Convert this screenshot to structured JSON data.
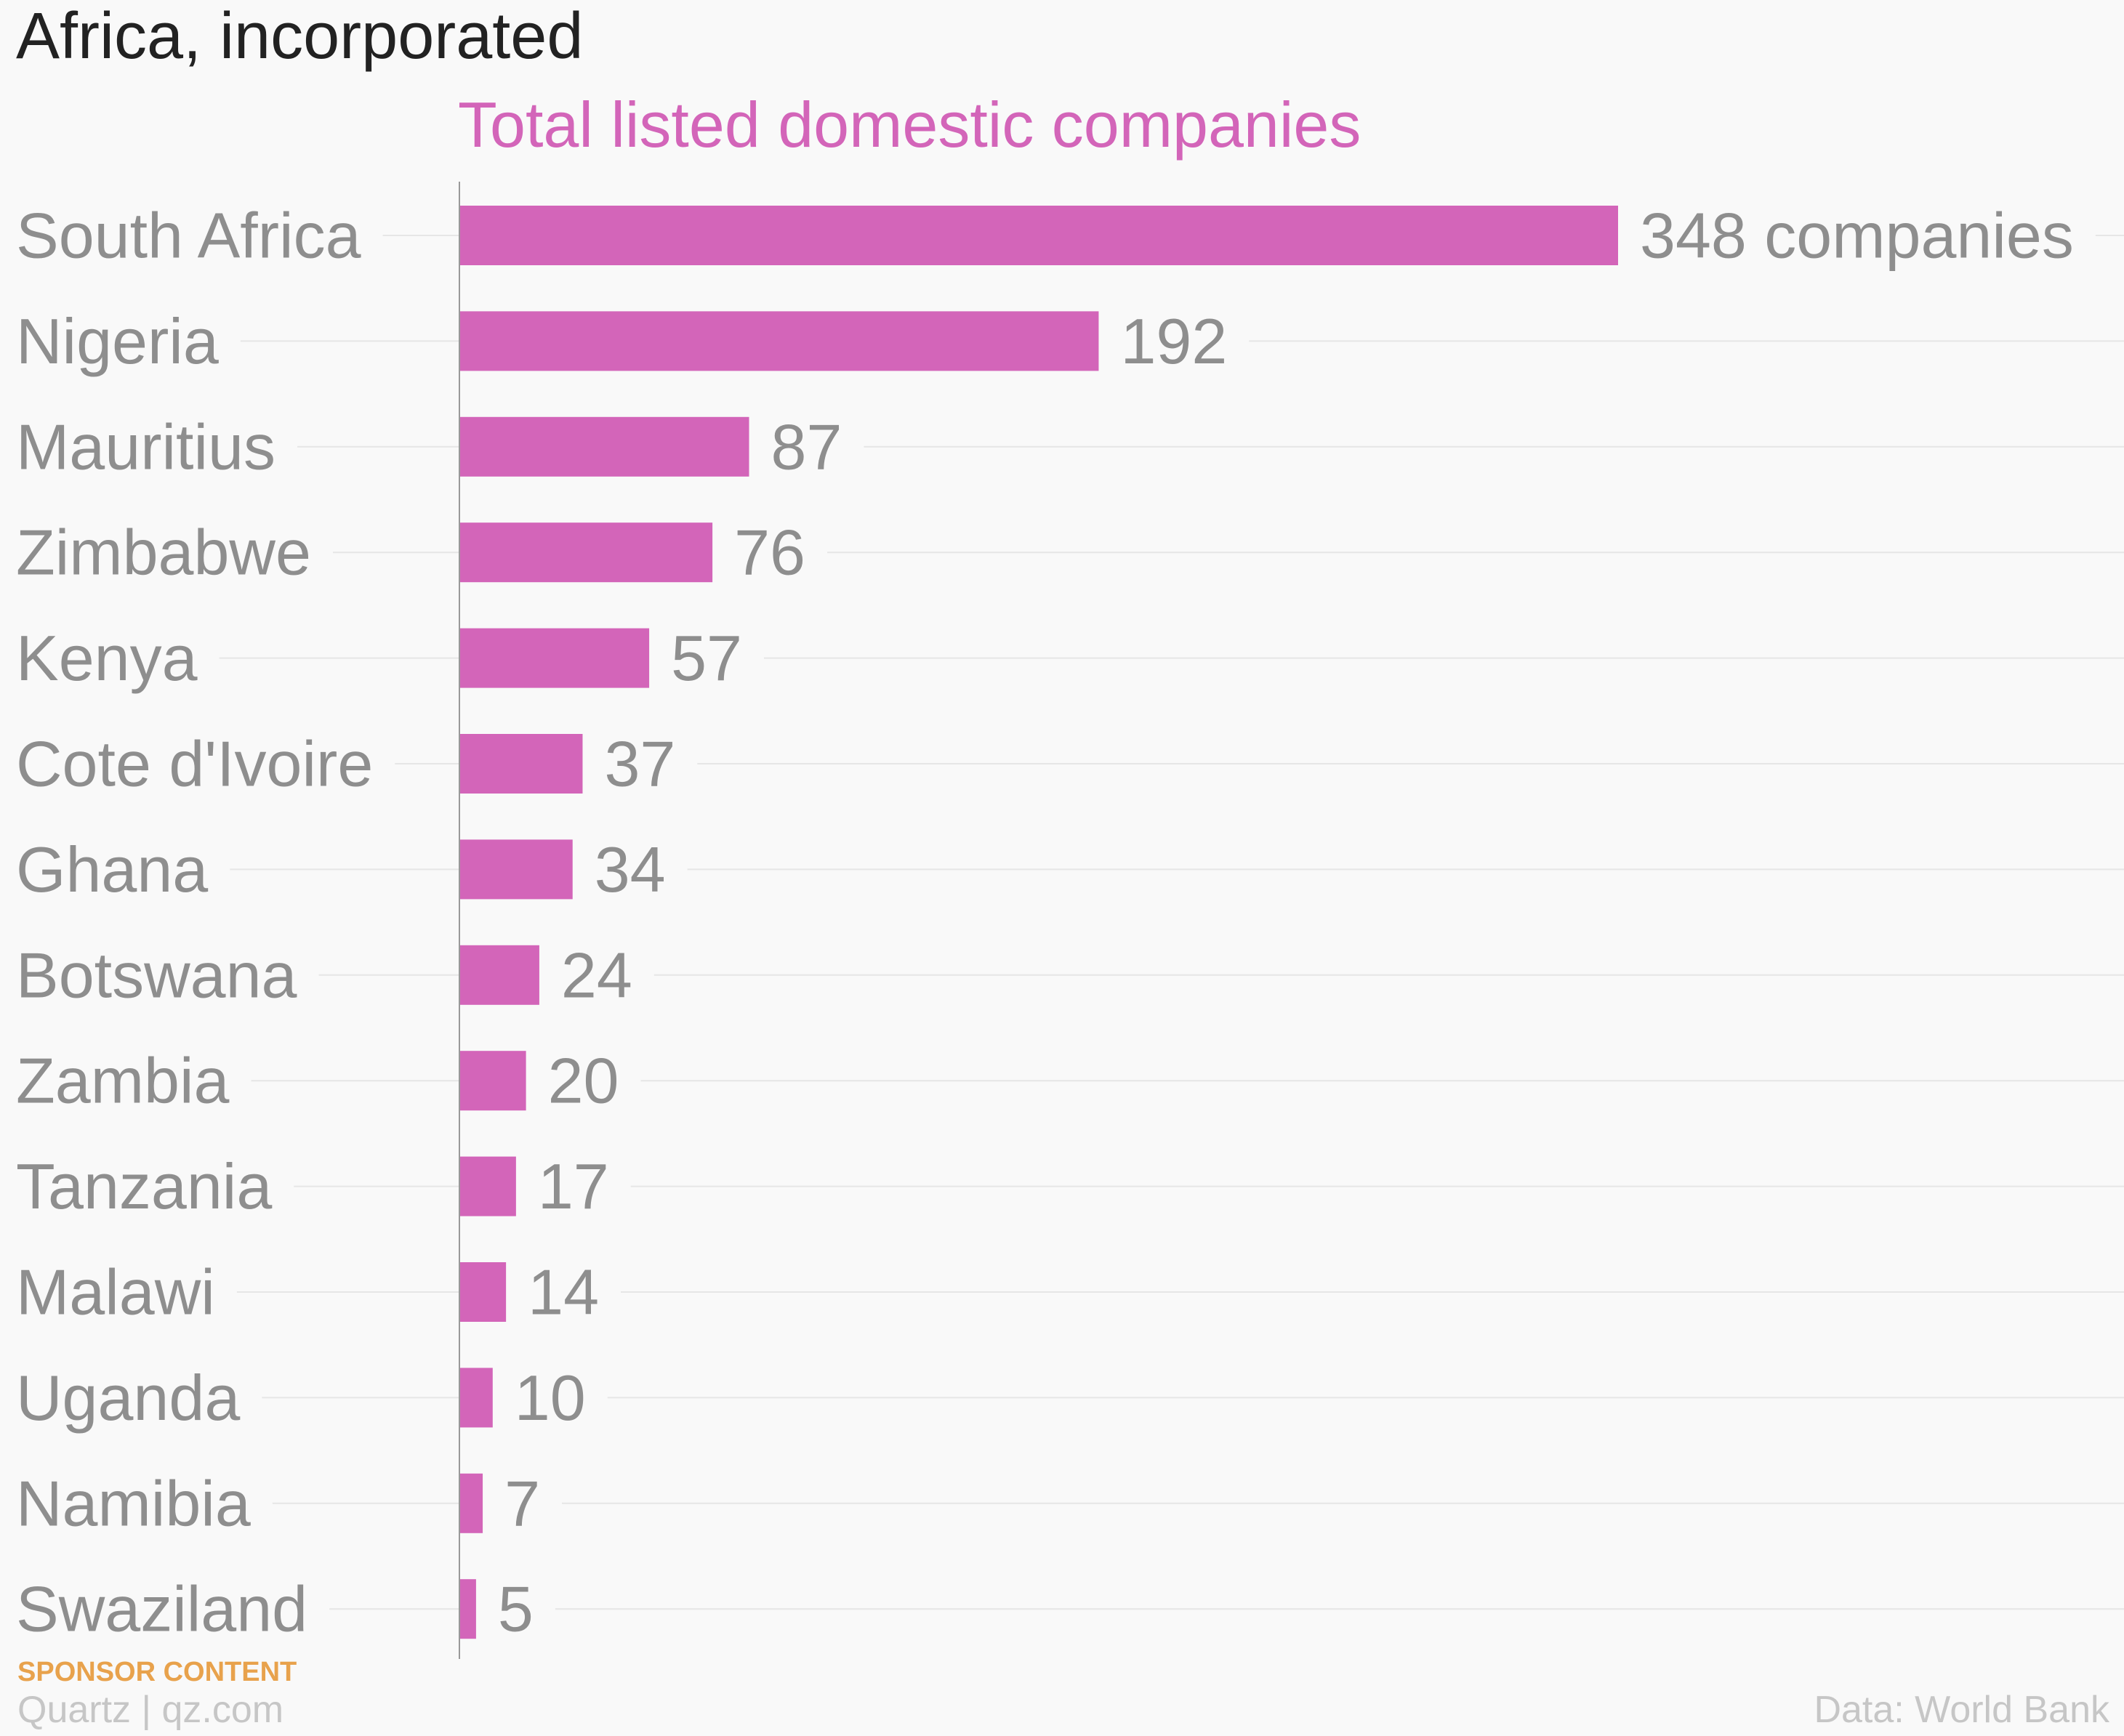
{
  "title": "Africa, incorporated",
  "footer": {
    "sponsor": "SPONSOR CONTENT",
    "credit": "Quartz | qz.com",
    "source": "Data: World Bank"
  },
  "colors": {
    "bar": "#d365b9",
    "subtitle": "#d365b9",
    "label": "#8e8e8e",
    "title": "#222222",
    "sponsor": "#e8a24c",
    "footer": "#c6c6c6",
    "gridline": "#e6e6e6",
    "axis": "#999999"
  },
  "chart_data": {
    "type": "bar",
    "orientation": "horizontal",
    "subtitle": "Total listed domestic companies",
    "first_value_suffix": " companies",
    "grid": true,
    "categories": [
      "South Africa",
      "Nigeria",
      "Mauritius",
      "Zimbabwe",
      "Kenya",
      "Cote d'Ivoire",
      "Ghana",
      "Botswana",
      "Zambia",
      "Tanzania",
      "Malawi",
      "Uganda",
      "Namibia",
      "Swaziland"
    ],
    "values": [
      348,
      192,
      87,
      76,
      57,
      37,
      34,
      24,
      20,
      17,
      14,
      10,
      7,
      5
    ],
    "xlim": [
      0,
      348
    ]
  }
}
